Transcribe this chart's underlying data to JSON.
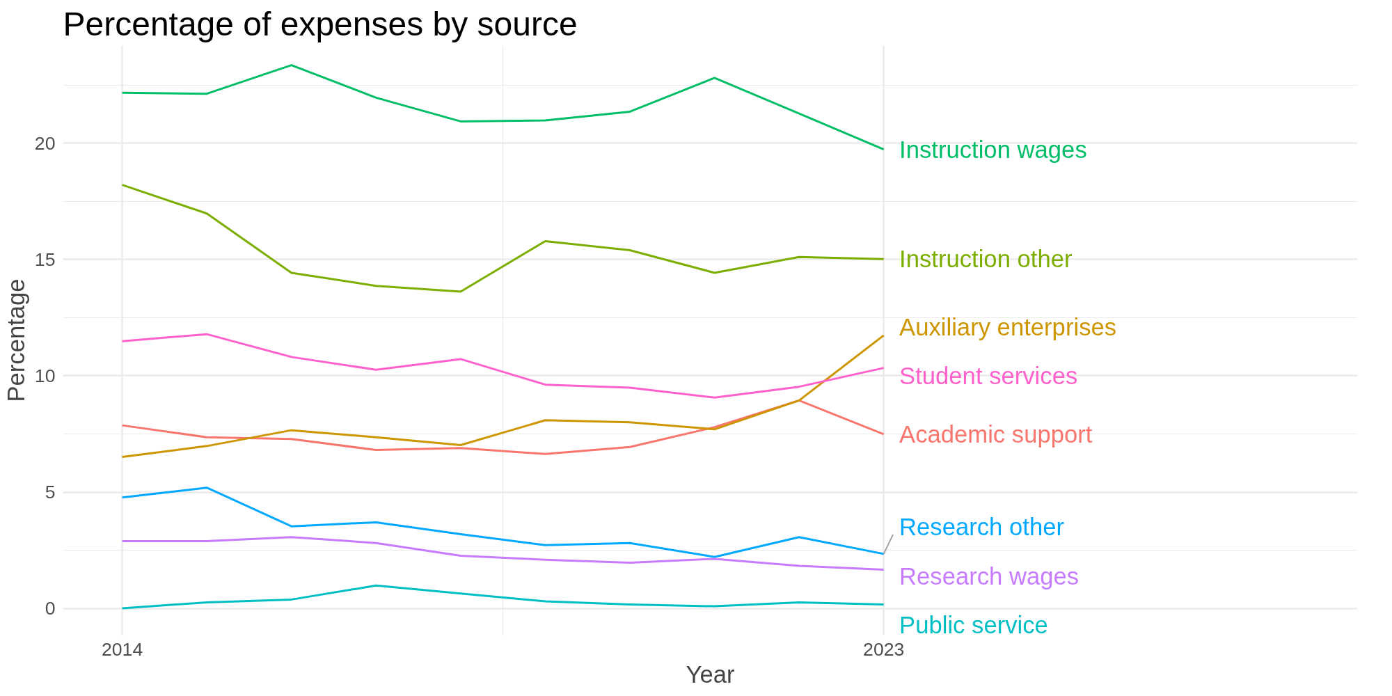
{
  "chart_data": {
    "type": "line",
    "title": "Percentage of expenses by source",
    "xlabel": "Year",
    "ylabel": "Percentage",
    "x": [
      2014,
      2015,
      2016,
      2017,
      2018,
      2019,
      2020,
      2021,
      2022,
      2023
    ],
    "xlim": [
      2013.3,
      2028.6
    ],
    "xticks": [
      2014,
      2023
    ],
    "ylim": [
      -1.15,
      24.2
    ],
    "yticks": [
      0,
      5,
      10,
      15,
      20
    ],
    "grid": true,
    "series": [
      {
        "name": "Academic support",
        "color": "#f8766d",
        "values": [
          7.87,
          7.36,
          7.28,
          6.81,
          6.89,
          6.64,
          6.94,
          7.79,
          8.94,
          7.49
        ]
      },
      {
        "name": "Auxiliary enterprises",
        "color": "#cd9600",
        "values": [
          6.51,
          6.98,
          7.66,
          7.36,
          7.02,
          8.09,
          8.0,
          7.7,
          8.94,
          11.74
        ]
      },
      {
        "name": "Instruction other",
        "color": "#7cae00",
        "values": [
          18.21,
          16.98,
          14.43,
          13.87,
          13.62,
          15.79,
          15.4,
          14.43,
          15.11,
          15.02
        ]
      },
      {
        "name": "Instruction wages",
        "color": "#00be67",
        "values": [
          22.17,
          22.13,
          23.36,
          21.96,
          20.94,
          20.98,
          21.36,
          22.81,
          21.28,
          19.74
        ]
      },
      {
        "name": "Public service",
        "color": "#00bfc4",
        "values": [
          0,
          0.26,
          0.38,
          0.98,
          0.64,
          0.3,
          0.17,
          0.09,
          0.26,
          0.17
        ]
      },
      {
        "name": "Research other",
        "color": "#00a9ff",
        "values": [
          4.77,
          5.19,
          3.53,
          3.7,
          3.19,
          2.72,
          2.81,
          2.21,
          3.06,
          2.34
        ]
      },
      {
        "name": "Research wages",
        "color": "#c77cff",
        "values": [
          2.89,
          2.89,
          3.06,
          2.81,
          2.26,
          2.09,
          1.96,
          2.13,
          1.83,
          1.66
        ]
      },
      {
        "name": "Student services",
        "color": "#ff61cc",
        "values": [
          11.49,
          11.79,
          10.81,
          10.26,
          10.72,
          9.62,
          9.49,
          9.06,
          9.53,
          10.34
        ]
      }
    ]
  }
}
